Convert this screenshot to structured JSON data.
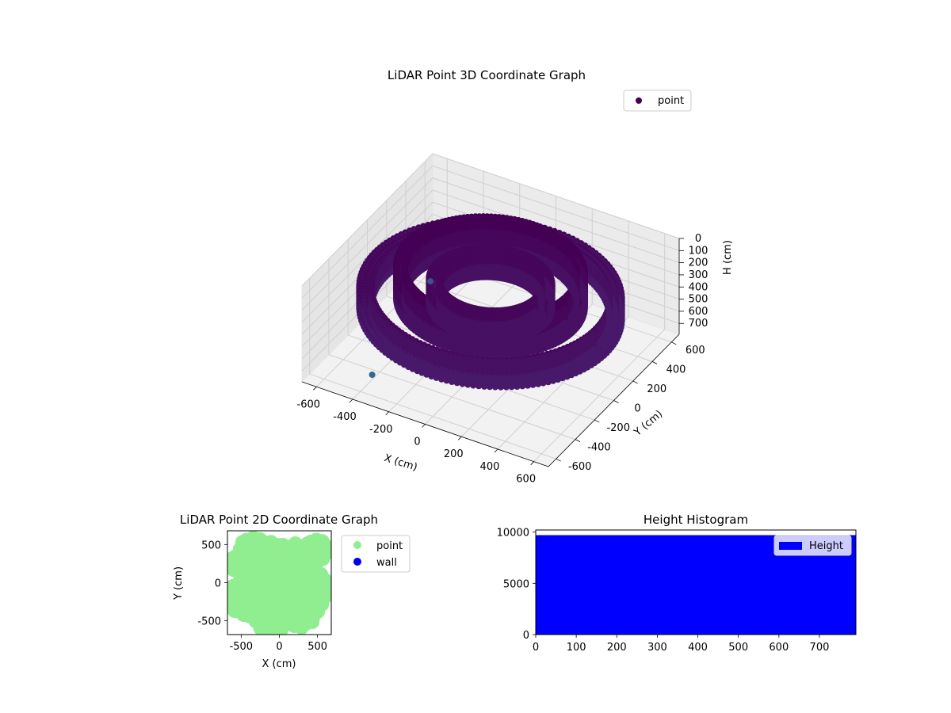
{
  "chart_data": [
    {
      "type": "scatter",
      "projection": "3d",
      "title": "LiDAR Point 3D Coordinate Graph",
      "xlabel": "X (cm)",
      "ylabel": "Y (cm)",
      "zlabel": "H (cm)",
      "xlim": [
        -680,
        680
      ],
      "ylim": [
        -680,
        680
      ],
      "zlim": [
        0,
        790
      ],
      "z_inverted": true,
      "x_ticks": [
        "-600",
        "-400",
        "-200",
        "0",
        "200",
        "400",
        "600"
      ],
      "y_ticks": [
        "-600",
        "-400",
        "-200",
        "0",
        "200",
        "400",
        "600"
      ],
      "z_ticks": [
        "0",
        "100",
        "200",
        "300",
        "400",
        "500",
        "600",
        "700"
      ],
      "grid": true,
      "legend": {
        "position": "top-right",
        "entries": [
          {
            "label": "point",
            "color": "#440154"
          }
        ]
      },
      "colormap": "viridis",
      "series": [
        {
          "name": "point",
          "shape": "scan-rings",
          "rings": [
            {
              "radius": 640,
              "h_min": 250,
              "h_max": 420
            },
            {
              "radius": 610,
              "h_min": 250,
              "h_max": 420
            },
            {
              "radius": 580,
              "h_min": 250,
              "h_max": 420
            },
            {
              "radius": 460,
              "h_min": 60,
              "h_max": 330
            },
            {
              "radius": 420,
              "h_min": 60,
              "h_max": 330
            },
            {
              "radius": 300,
              "h_min": 160,
              "h_max": 360
            },
            {
              "radius": 250,
              "h_min": 160,
              "h_max": 360
            }
          ],
          "outliers": [
            {
              "x": -560,
              "y": 430,
              "h": 790,
              "color": "#3b528b"
            },
            {
              "x": -420,
              "y": -440,
              "h": 790,
              "color": "#31688e"
            }
          ]
        }
      ]
    },
    {
      "type": "scatter",
      "title": "LiDAR Point 2D Coordinate Graph",
      "xlabel": "X (cm)",
      "ylabel": "Y (cm)",
      "xlim": [
        -680,
        680
      ],
      "ylim": [
        -680,
        680
      ],
      "x_ticks": [
        "-500",
        "0",
        "500"
      ],
      "y_ticks": [
        "-500",
        "0",
        "500"
      ],
      "legend": {
        "position": "outside-right",
        "entries": [
          {
            "label": "point",
            "color": "#90ee90"
          },
          {
            "label": "wall",
            "color": "#0000e6"
          }
        ]
      },
      "series": [
        {
          "name": "point",
          "color": "#90ee90"
        }
      ]
    },
    {
      "type": "bar",
      "title": "Height Histogram",
      "xlim": [
        0,
        790
      ],
      "ylim": [
        0,
        10200
      ],
      "x_ticks": [
        "0",
        "100",
        "200",
        "300",
        "400",
        "500",
        "600",
        "700"
      ],
      "y_ticks": [
        "0",
        "5000",
        "10000"
      ],
      "legend": {
        "position": "top-right",
        "entries": [
          {
            "label": "Height",
            "color": "#0000ff"
          }
        ]
      },
      "series": [
        {
          "name": "Height",
          "color": "#0000ff",
          "bins": [
            {
              "from": 0,
              "to": 790,
              "count": 9700
            }
          ]
        }
      ]
    }
  ]
}
